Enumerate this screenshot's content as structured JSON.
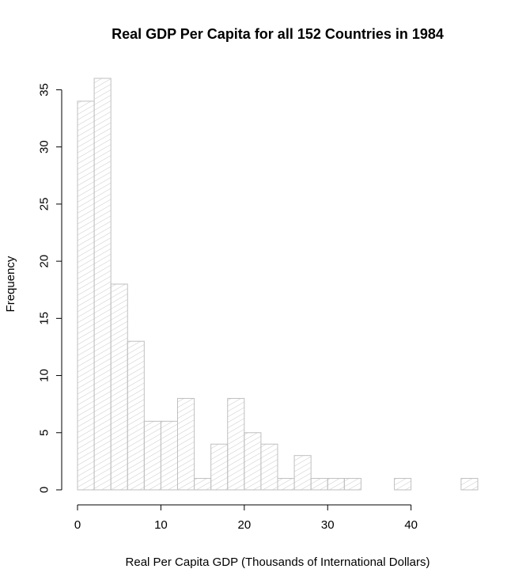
{
  "chart_data": {
    "type": "bar",
    "title": "Real GDP Per Capita for all 152 Countries in 1984",
    "xlabel": "Real Per Capita GDP (Thousands of International Dollars)",
    "ylabel": "Frequency",
    "bin_width": 2,
    "bins": [
      {
        "from": 0,
        "to": 2,
        "value": 34
      },
      {
        "from": 2,
        "to": 4,
        "value": 36
      },
      {
        "from": 4,
        "to": 6,
        "value": 18
      },
      {
        "from": 6,
        "to": 8,
        "value": 13
      },
      {
        "from": 8,
        "to": 10,
        "value": 6
      },
      {
        "from": 10,
        "to": 12,
        "value": 6
      },
      {
        "from": 12,
        "to": 14,
        "value": 8
      },
      {
        "from": 14,
        "to": 16,
        "value": 1
      },
      {
        "from": 16,
        "to": 18,
        "value": 4
      },
      {
        "from": 18,
        "to": 20,
        "value": 8
      },
      {
        "from": 20,
        "to": 22,
        "value": 5
      },
      {
        "from": 22,
        "to": 24,
        "value": 4
      },
      {
        "from": 24,
        "to": 26,
        "value": 1
      },
      {
        "from": 26,
        "to": 28,
        "value": 3
      },
      {
        "from": 28,
        "to": 30,
        "value": 1
      },
      {
        "from": 30,
        "to": 32,
        "value": 1
      },
      {
        "from": 32,
        "to": 34,
        "value": 1
      },
      {
        "from": 34,
        "to": 36,
        "value": 0
      },
      {
        "from": 36,
        "to": 38,
        "value": 0
      },
      {
        "from": 38,
        "to": 40,
        "value": 1
      },
      {
        "from": 40,
        "to": 42,
        "value": 0
      },
      {
        "from": 42,
        "to": 44,
        "value": 0
      },
      {
        "from": 44,
        "to": 46,
        "value": 0
      },
      {
        "from": 46,
        "to": 48,
        "value": 1
      }
    ],
    "xlim": [
      0,
      48
    ],
    "ylim": [
      0,
      36
    ],
    "x_ticks": [
      0,
      10,
      20,
      30,
      40
    ],
    "y_ticks": [
      0,
      5,
      10,
      15,
      20,
      25,
      30,
      35
    ],
    "grid": false,
    "bar_fill": "hatched",
    "colors": {
      "bar_border": "#bfbfbf",
      "hatch": "#c8c8c8",
      "axis": "#000000",
      "background": "#ffffff"
    }
  }
}
